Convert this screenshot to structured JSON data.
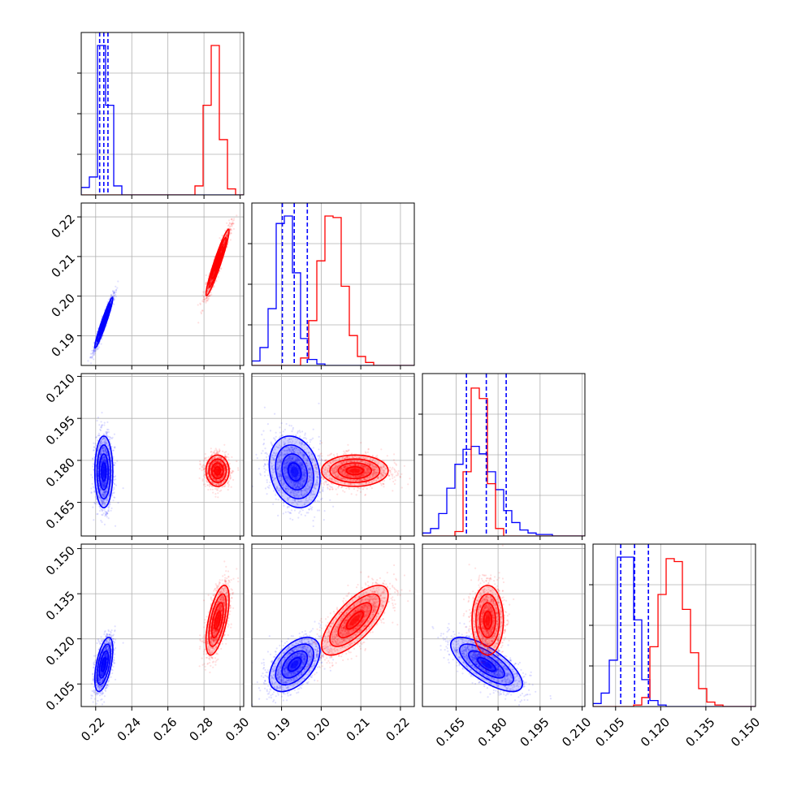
{
  "chart_data": {
    "type": "corner",
    "description_variables": 4,
    "colors": {
      "series_a": "#0000ff",
      "series_b": "#ff0000",
      "grid": "#b0b0b0"
    },
    "grid": true,
    "axes": [
      {
        "range": [
          0.212,
          0.302
        ],
        "ticks": [
          0.22,
          0.24,
          0.26,
          0.28,
          0.3
        ],
        "tick_labels": [
          "0.22",
          "0.24",
          "0.26",
          "0.28",
          "0.30"
        ]
      },
      {
        "range": [
          0.1825,
          0.2235
        ],
        "ticks": [
          0.19,
          0.2,
          0.21,
          0.22
        ],
        "tick_labels": [
          "0.19",
          "0.20",
          "0.21",
          "0.22"
        ]
      },
      {
        "range": [
          0.153,
          0.211
        ],
        "ticks": [
          0.165,
          0.18,
          0.195,
          0.21
        ],
        "tick_labels": [
          "0.165",
          "0.180",
          "0.195",
          "0.210"
        ]
      },
      {
        "range": [
          0.0975,
          0.1515
        ],
        "ticks": [
          0.105,
          0.12,
          0.135,
          0.15
        ],
        "tick_labels": [
          "0.105",
          "0.120",
          "0.135",
          "0.150"
        ]
      }
    ],
    "series": [
      {
        "color": "#0000ff",
        "mean": [
          0.2245,
          0.1933,
          0.1759,
          0.1115
        ],
        "sd": [
          0.0025,
          0.0032,
          0.0064,
          0.0045
        ],
        "correlation": [
          [
            1.0,
            0.96,
            0.0,
            0.55
          ],
          [
            0.96,
            1.0,
            -0.2,
            0.5
          ],
          [
            0.0,
            -0.2,
            1.0,
            -0.72
          ],
          [
            0.55,
            0.5,
            -0.72,
            1.0
          ]
        ],
        "quantiles": [
          [
            0.2222,
            0.2245,
            0.2268
          ],
          [
            0.1902,
            0.1932,
            0.1965
          ],
          [
            0.1687,
            0.1758,
            0.1829
          ],
          [
            0.1067,
            0.1113,
            0.1159
          ]
        ]
      },
      {
        "color": "#ff0000",
        "mean": [
          0.2875,
          0.2085,
          0.1763,
          0.1262
        ],
        "sd": [
          0.0032,
          0.0042,
          0.0028,
          0.0058
        ],
        "correlation": [
          [
            1.0,
            0.95,
            0.0,
            0.6
          ],
          [
            0.95,
            1.0,
            0.0,
            0.72
          ],
          [
            0.0,
            0.0,
            1.0,
            0.0
          ],
          [
            0.6,
            0.72,
            0.0,
            1.0
          ]
        ],
        "quantiles": []
      }
    ],
    "histograms": [
      {
        "bins": 20,
        "blue": [
          0.05,
          0.12,
          1.0,
          0.6,
          0.06,
          0,
          0,
          0,
          0,
          0,
          0,
          0,
          0,
          0,
          0,
          0,
          0,
          0,
          0,
          0
        ],
        "red": [
          0,
          0,
          0,
          0,
          0,
          0,
          0,
          0,
          0,
          0,
          0,
          0,
          0,
          0,
          0.06,
          0.6,
          1.0,
          0.37,
          0.04,
          0
        ]
      },
      {
        "bins": 20,
        "blue": [
          0.03,
          0.12,
          0.38,
          0.95,
          1.0,
          0.62,
          0.18,
          0.04,
          0.01,
          0,
          0,
          0,
          0,
          0,
          0,
          0,
          0,
          0,
          0,
          0
        ],
        "red": [
          0,
          0,
          0,
          0,
          0,
          0,
          0.05,
          0.3,
          0.7,
          1.0,
          0.99,
          0.53,
          0.2,
          0.06,
          0.02,
          0,
          0,
          0,
          0,
          0
        ]
      },
      {
        "bins": 20,
        "blue": [
          0.02,
          0.05,
          0.15,
          0.32,
          0.48,
          0.58,
          0.6,
          0.55,
          0.43,
          0.31,
          0.17,
          0.09,
          0.04,
          0.02,
          0.01,
          0.01,
          0,
          0,
          0,
          0
        ],
        "red": [
          0,
          0,
          0,
          0,
          0.03,
          0.43,
          0.99,
          0.92,
          0.35,
          0.05,
          0,
          0,
          0,
          0,
          0,
          0,
          0,
          0,
          0,
          0
        ]
      },
      {
        "bins": 20,
        "blue": [
          0.02,
          0.09,
          0.31,
          1.0,
          1.0,
          0.58,
          0.18,
          0.04,
          0.01,
          0,
          0,
          0,
          0,
          0,
          0,
          0,
          0,
          0,
          0,
          0
        ],
        "red": [
          0,
          0,
          0,
          0,
          0,
          0.01,
          0.06,
          0.4,
          0.75,
          0.99,
          0.97,
          0.65,
          0.36,
          0.12,
          0.03,
          0.01,
          0,
          0,
          0,
          0
        ]
      }
    ]
  }
}
